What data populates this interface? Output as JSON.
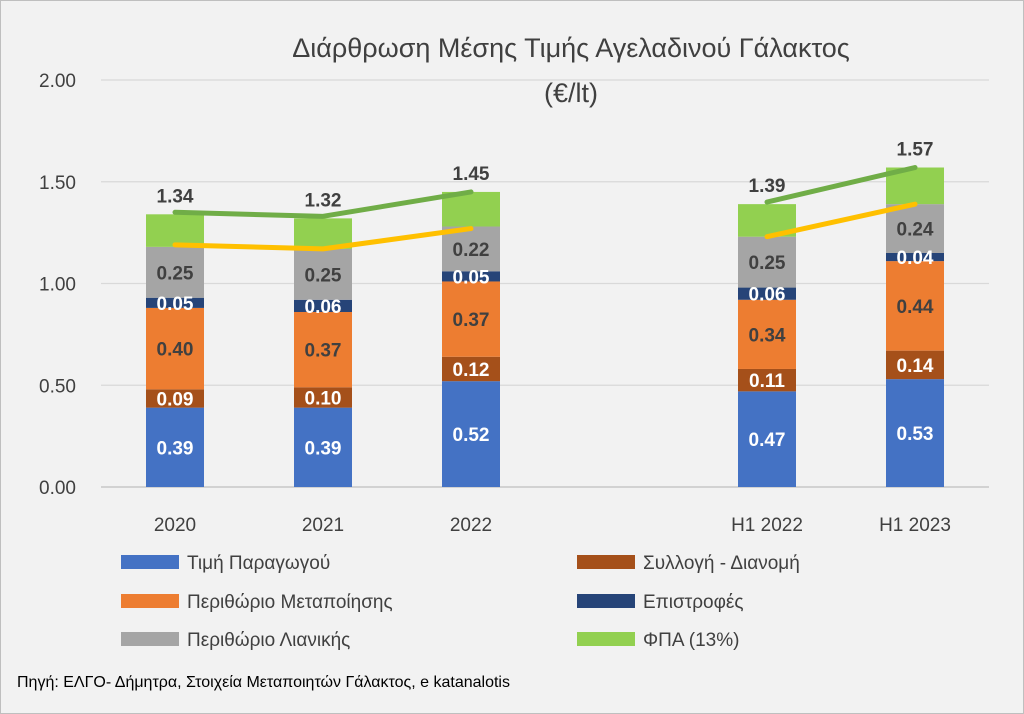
{
  "chart_data": {
    "type": "bar",
    "stacked": true,
    "title_lines": [
      "Διάρθρωση Μέσης Τιμής Αγελαδινού Γάλακτος",
      "(€/lt)"
    ],
    "categories": [
      "2020",
      "2021",
      "2022",
      "H1 2022",
      "H1 2023"
    ],
    "ylim": [
      0,
      2.0
    ],
    "yticks": [
      "0.00",
      "0.50",
      "1.00",
      "1.50",
      "2.00"
    ],
    "ytick_values": [
      0,
      0.5,
      1.0,
      1.5,
      2.0
    ],
    "gridlines": true,
    "legend_position": "bottom",
    "series": [
      {
        "name": "Τιμή Παραγωγού",
        "color": "#4472c4",
        "label_style": "light",
        "values": [
          0.39,
          0.39,
          0.52,
          0.47,
          0.53
        ],
        "labels": [
          "0.39",
          "0.39",
          "0.52",
          "0.47",
          "0.53"
        ]
      },
      {
        "name": "Συλλογή - Διανομή",
        "color": "#a5501a",
        "label_style": "light",
        "values": [
          0.09,
          0.1,
          0.12,
          0.11,
          0.14
        ],
        "labels": [
          "0.09",
          "0.10",
          "0.12",
          "0.11",
          "0.14"
        ]
      },
      {
        "name": "Περιθώριο Μεταποίησης",
        "color": "#ed7d31",
        "label_style": "dark",
        "values": [
          0.4,
          0.37,
          0.37,
          0.34,
          0.44
        ],
        "labels": [
          "0.40",
          "0.37",
          "0.37",
          "0.34",
          "0.44"
        ]
      },
      {
        "name": "Επιστροφές",
        "color": "#264478",
        "label_style": "light",
        "values": [
          0.05,
          0.06,
          0.05,
          0.06,
          0.04
        ],
        "labels": [
          "0.05",
          "0.06",
          "0.05",
          "0.06",
          "0.04"
        ]
      },
      {
        "name": "Περιθώριο Λιανικής",
        "color": "#a5a5a5",
        "label_style": "dark",
        "values": [
          0.25,
          0.25,
          0.22,
          0.25,
          0.24
        ],
        "labels": [
          "0.25",
          "0.25",
          "0.22",
          "0.25",
          "0.24"
        ]
      },
      {
        "name": "ΦΠΑ (13%)",
        "color": "#92d050",
        "label_style": "none",
        "values": [
          0.16,
          0.15,
          0.17,
          0.16,
          0.18
        ],
        "labels": []
      }
    ],
    "totals": [
      "1.34",
      "1.32",
      "1.45",
      "1.39",
      "1.57"
    ],
    "total_values": [
      1.34,
      1.32,
      1.45,
      1.39,
      1.57
    ],
    "lines": [
      {
        "color": "#70ad47",
        "segments": [
          [
            1.35,
            1.33,
            1.45
          ],
          [
            1.4,
            1.57
          ]
        ]
      },
      {
        "color": "#ffc000",
        "segments": [
          [
            1.19,
            1.17,
            1.27
          ],
          [
            1.23,
            1.39
          ]
        ]
      }
    ],
    "legend_order": [
      0,
      1,
      2,
      3,
      4,
      5
    ]
  },
  "source": "Πηγή: ΕΛΓΟ- Δήμητρα, Στοιχεία Μεταποιητών Γάλακτος, e katanalotis"
}
